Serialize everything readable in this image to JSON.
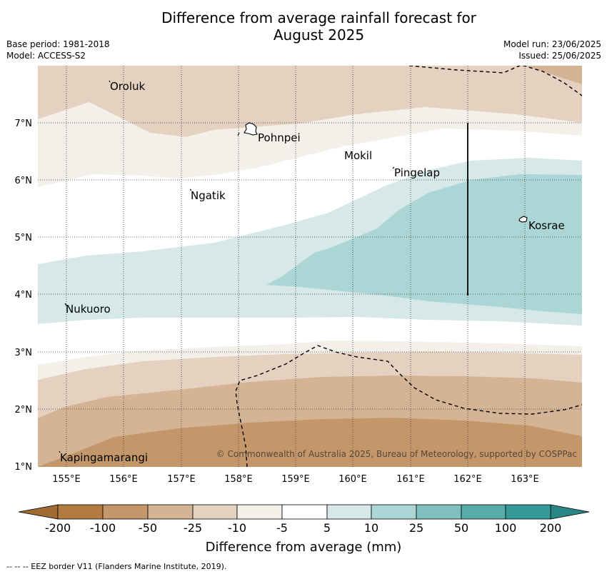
{
  "header": {
    "title_line1": "Difference from average rainfall forecast for",
    "title_line2": "August 2025",
    "base_period": "Base period: 1981-2018",
    "model": "Model: ACCESS-S2",
    "model_run": "Model run: 23/06/2025",
    "issued": "Issued: 25/06/2025"
  },
  "map": {
    "lat_labels": [
      "7°N",
      "6°N",
      "5°N",
      "4°N",
      "3°N",
      "2°N",
      "1°N"
    ],
    "lon_labels": [
      "155°E",
      "156°E",
      "157°E",
      "158°E",
      "159°E",
      "160°E",
      "161°E",
      "162°E",
      "163°E"
    ],
    "places": [
      "Oroluk",
      "Pohnpei",
      "Mokil",
      "Pingelap",
      "Ngatik",
      "Kosrae",
      "Nukuoro",
      "Kapingamarangi"
    ],
    "copyright": "© Commonwealth of Australia 2025, Bureau of Meteorology, supported by COSPPac"
  },
  "legend": {
    "tick_labels": [
      "-200",
      "-100",
      "-50",
      "-25",
      "-10",
      "-5",
      "5",
      "10",
      "25",
      "50",
      "100",
      "200"
    ],
    "colors": [
      "#b47b41",
      "#c39769",
      "#d4b495",
      "#e4d1bf",
      "#f3efe9",
      "#ffffff",
      "#d6e9e8",
      "#acd6d6",
      "#7fc0bf",
      "#57acaa",
      "#36999a"
    ],
    "low_extend_color": "#9f6a33",
    "high_extend_color": "#2a8585",
    "title": "Difference from average (mm)"
  },
  "footer": {
    "eez_note": "--  --  -- EEZ border V11 (Flanders Marine Institute, 2019)."
  }
}
